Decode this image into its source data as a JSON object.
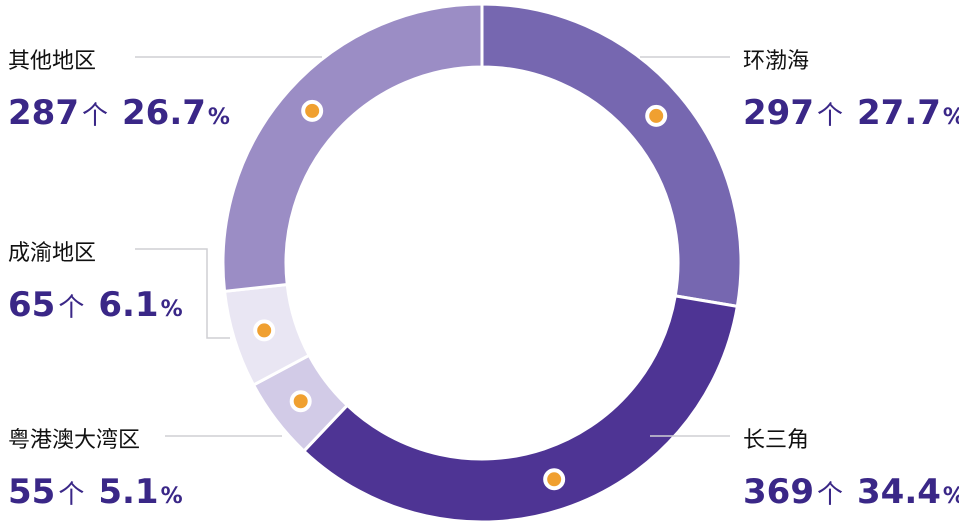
{
  "chart_data": {
    "type": "pie",
    "variant": "donut",
    "unit": "个",
    "legend": "none",
    "categories": [
      "环渤海",
      "长三角",
      "粤港澳大湾区",
      "成渝地区",
      "其他地区"
    ],
    "counts": [
      297,
      369,
      55,
      65,
      287
    ],
    "percents": [
      "27.7",
      "34.4",
      "5.1",
      "6.1",
      "26.7"
    ],
    "percent_sign": "%",
    "colors": [
      "#7667b0",
      "#4e3494",
      "#d2cbe7",
      "#e9e6f3",
      "#9b8dc5"
    ],
    "marker_color": "#f0a030",
    "label_color": "#3a2787"
  }
}
